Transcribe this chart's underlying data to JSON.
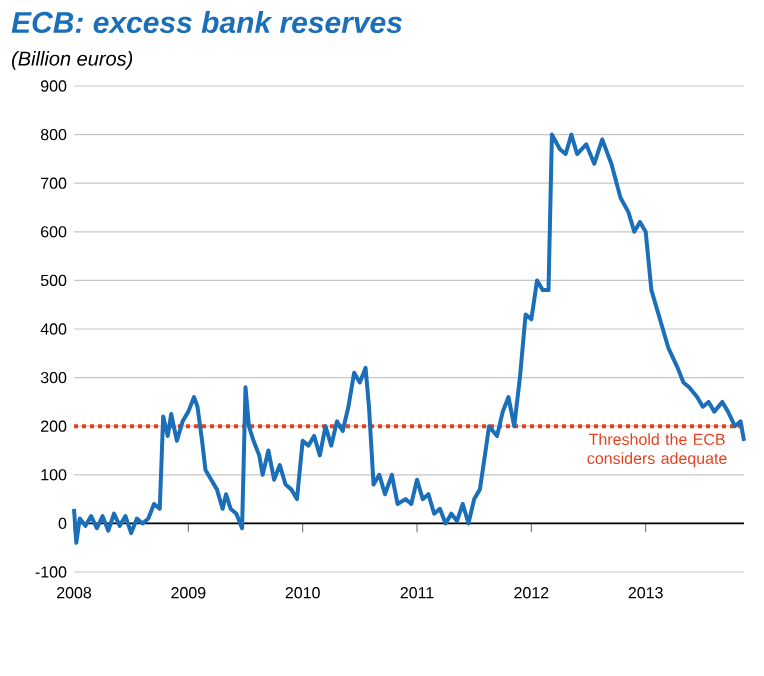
{
  "chart_data": {
    "type": "line",
    "title": "ECB: excess bank reserves",
    "subtitle": "(Billion euros)",
    "x": [
      2008.0,
      2008.02,
      2008.05,
      2008.1,
      2008.15,
      2008.2,
      2008.25,
      2008.3,
      2008.35,
      2008.4,
      2008.45,
      2008.5,
      2008.55,
      2008.6,
      2008.65,
      2008.7,
      2008.75,
      2008.78,
      2008.82,
      2008.85,
      2008.9,
      2008.95,
      2009.0,
      2009.05,
      2009.08,
      2009.12,
      2009.15,
      2009.2,
      2009.25,
      2009.3,
      2009.33,
      2009.37,
      2009.42,
      2009.47,
      2009.5,
      2009.53,
      2009.57,
      2009.62,
      2009.65,
      2009.7,
      2009.75,
      2009.8,
      2009.85,
      2009.9,
      2009.95,
      2010.0,
      2010.05,
      2010.1,
      2010.15,
      2010.2,
      2010.25,
      2010.3,
      2010.35,
      2010.4,
      2010.45,
      2010.5,
      2010.55,
      2010.58,
      2010.62,
      2010.67,
      2010.72,
      2010.78,
      2010.83,
      2010.9,
      2010.95,
      2011.0,
      2011.05,
      2011.1,
      2011.15,
      2011.2,
      2011.25,
      2011.3,
      2011.35,
      2011.4,
      2011.45,
      2011.5,
      2011.55,
      2011.6,
      2011.63,
      2011.7,
      2011.75,
      2011.8,
      2011.85,
      2011.9,
      2011.95,
      2012.0,
      2012.05,
      2012.1,
      2012.15,
      2012.18,
      2012.25,
      2012.3,
      2012.35,
      2012.4,
      2012.48,
      2012.55,
      2012.62,
      2012.7,
      2012.78,
      2012.85,
      2012.9,
      2012.95,
      2013.0,
      2013.05,
      2013.1,
      2013.15,
      2013.2,
      2013.28,
      2013.33,
      2013.38,
      2013.45,
      2013.5,
      2013.55,
      2013.6,
      2013.67,
      2013.72,
      2013.78,
      2013.83,
      2013.86
    ],
    "series": [
      {
        "color": "#1a6fb8",
        "values": [
          30,
          -40,
          10,
          -5,
          15,
          -10,
          15,
          -15,
          20,
          -5,
          15,
          -20,
          10,
          0,
          10,
          40,
          30,
          220,
          180,
          225,
          170,
          210,
          230,
          260,
          240,
          170,
          110,
          90,
          70,
          30,
          60,
          30,
          20,
          -10,
          280,
          200,
          170,
          140,
          100,
          150,
          90,
          120,
          80,
          70,
          50,
          170,
          160,
          180,
          140,
          200,
          160,
          210,
          190,
          240,
          310,
          290,
          320,
          240,
          80,
          100,
          60,
          100,
          40,
          50,
          40,
          90,
          50,
          60,
          20,
          30,
          0,
          20,
          5,
          40,
          0,
          50,
          70,
          150,
          200,
          180,
          230,
          260,
          200,
          300,
          430,
          420,
          500,
          480,
          480,
          800,
          770,
          760,
          800,
          760,
          780,
          740,
          790,
          740,
          670,
          640,
          600,
          620,
          600,
          480,
          440,
          400,
          360,
          320,
          290,
          280,
          260,
          240,
          250,
          230,
          250,
          230,
          200,
          210,
          170
        ]
      }
    ],
    "xlim": [
      2008,
      2013.86
    ],
    "ylim": [
      -100,
      900
    ],
    "xticks": [
      2008,
      2009,
      2010,
      2011,
      2012,
      2013
    ],
    "yticks": [
      -100,
      0,
      100,
      200,
      300,
      400,
      500,
      600,
      700,
      800,
      900
    ],
    "grid": "y",
    "line_style": "solid",
    "marker": "none",
    "ref_lines": [
      {
        "axis": "y",
        "value": 0,
        "color": "#000000",
        "line_style": "solid"
      },
      {
        "axis": "y",
        "value": 200,
        "label": "Threshold the ECB considers adequate",
        "color": "#e8401c",
        "line_style": "dotted"
      }
    ]
  }
}
